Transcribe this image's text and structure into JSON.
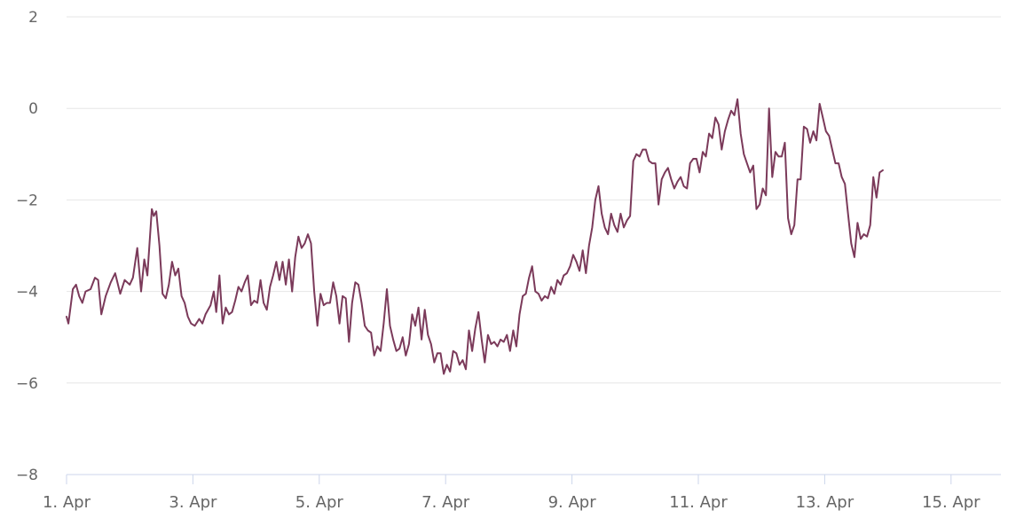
{
  "chart_data": {
    "type": "line",
    "title": "",
    "xlabel": "",
    "ylabel": "",
    "xlim": [
      0,
      14.75
    ],
    "ylim": [
      -8,
      2
    ],
    "y_ticks": [
      2,
      0,
      -2,
      -4,
      -6,
      -8
    ],
    "y_tick_labels": [
      "2",
      "0",
      "−2",
      "−4",
      "−6",
      "−8"
    ],
    "x_ticks": [
      0,
      2,
      4,
      6,
      8,
      10,
      12,
      14
    ],
    "x_tick_labels": [
      "1. Apr",
      "3. Apr",
      "5. Apr",
      "7. Apr",
      "9. Apr",
      "11. Apr",
      "13. Apr",
      "15. Apr"
    ],
    "x_unit": "days since 1. Apr",
    "grid": true,
    "legend": "none",
    "series": [
      {
        "color": "#7b3a5a",
        "points": [
          [
            0.0,
            -4.55
          ],
          [
            0.03,
            -4.7
          ],
          [
            0.1,
            -3.95
          ],
          [
            0.15,
            -3.85
          ],
          [
            0.2,
            -4.1
          ],
          [
            0.25,
            -4.25
          ],
          [
            0.3,
            -4.0
          ],
          [
            0.38,
            -3.95
          ],
          [
            0.45,
            -3.7
          ],
          [
            0.5,
            -3.75
          ],
          [
            0.55,
            -4.5
          ],
          [
            0.62,
            -4.1
          ],
          [
            0.7,
            -3.8
          ],
          [
            0.77,
            -3.6
          ],
          [
            0.85,
            -4.05
          ],
          [
            0.92,
            -3.75
          ],
          [
            1.0,
            -3.85
          ],
          [
            1.05,
            -3.7
          ],
          [
            1.12,
            -3.05
          ],
          [
            1.18,
            -4.0
          ],
          [
            1.23,
            -3.3
          ],
          [
            1.28,
            -3.65
          ],
          [
            1.35,
            -2.2
          ],
          [
            1.38,
            -2.35
          ],
          [
            1.42,
            -2.25
          ],
          [
            1.47,
            -3.0
          ],
          [
            1.52,
            -4.05
          ],
          [
            1.57,
            -4.15
          ],
          [
            1.62,
            -3.85
          ],
          [
            1.67,
            -3.35
          ],
          [
            1.72,
            -3.65
          ],
          [
            1.77,
            -3.5
          ],
          [
            1.82,
            -4.1
          ],
          [
            1.87,
            -4.25
          ],
          [
            1.92,
            -4.55
          ],
          [
            1.97,
            -4.7
          ],
          [
            2.03,
            -4.75
          ],
          [
            2.1,
            -4.6
          ],
          [
            2.15,
            -4.7
          ],
          [
            2.2,
            -4.5
          ],
          [
            2.28,
            -4.3
          ],
          [
            2.33,
            -4.0
          ],
          [
            2.37,
            -4.45
          ],
          [
            2.42,
            -3.65
          ],
          [
            2.47,
            -4.7
          ],
          [
            2.52,
            -4.35
          ],
          [
            2.57,
            -4.5
          ],
          [
            2.62,
            -4.45
          ],
          [
            2.67,
            -4.2
          ],
          [
            2.72,
            -3.9
          ],
          [
            2.77,
            -4.0
          ],
          [
            2.82,
            -3.8
          ],
          [
            2.87,
            -3.65
          ],
          [
            2.92,
            -4.3
          ],
          [
            2.97,
            -4.2
          ],
          [
            3.02,
            -4.25
          ],
          [
            3.07,
            -3.75
          ],
          [
            3.12,
            -4.25
          ],
          [
            3.17,
            -4.4
          ],
          [
            3.22,
            -3.9
          ],
          [
            3.27,
            -3.65
          ],
          [
            3.32,
            -3.35
          ],
          [
            3.37,
            -3.75
          ],
          [
            3.42,
            -3.35
          ],
          [
            3.47,
            -3.85
          ],
          [
            3.52,
            -3.3
          ],
          [
            3.57,
            -4.0
          ],
          [
            3.62,
            -3.25
          ],
          [
            3.67,
            -2.8
          ],
          [
            3.72,
            -3.05
          ],
          [
            3.77,
            -2.95
          ],
          [
            3.82,
            -2.75
          ],
          [
            3.87,
            -2.95
          ],
          [
            3.92,
            -4.0
          ],
          [
            3.97,
            -4.75
          ],
          [
            4.02,
            -4.05
          ],
          [
            4.07,
            -4.3
          ],
          [
            4.12,
            -4.25
          ],
          [
            4.17,
            -4.25
          ],
          [
            4.22,
            -3.8
          ],
          [
            4.27,
            -4.1
          ],
          [
            4.32,
            -4.7
          ],
          [
            4.37,
            -4.1
          ],
          [
            4.42,
            -4.15
          ],
          [
            4.47,
            -5.1
          ],
          [
            4.52,
            -4.25
          ],
          [
            4.57,
            -3.8
          ],
          [
            4.62,
            -3.85
          ],
          [
            4.67,
            -4.25
          ],
          [
            4.72,
            -4.75
          ],
          [
            4.77,
            -4.85
          ],
          [
            4.82,
            -4.9
          ],
          [
            4.87,
            -5.4
          ],
          [
            4.92,
            -5.2
          ],
          [
            4.97,
            -5.3
          ],
          [
            5.02,
            -4.7
          ],
          [
            5.07,
            -3.95
          ],
          [
            5.12,
            -4.75
          ],
          [
            5.17,
            -5.05
          ],
          [
            5.22,
            -5.3
          ],
          [
            5.27,
            -5.25
          ],
          [
            5.32,
            -5.0
          ],
          [
            5.37,
            -5.4
          ],
          [
            5.42,
            -5.15
          ],
          [
            5.47,
            -4.5
          ],
          [
            5.52,
            -4.75
          ],
          [
            5.57,
            -4.35
          ],
          [
            5.62,
            -5.05
          ],
          [
            5.67,
            -4.4
          ],
          [
            5.72,
            -4.95
          ],
          [
            5.77,
            -5.15
          ],
          [
            5.82,
            -5.55
          ],
          [
            5.87,
            -5.35
          ],
          [
            5.92,
            -5.35
          ],
          [
            5.97,
            -5.8
          ],
          [
            6.02,
            -5.6
          ],
          [
            6.07,
            -5.75
          ],
          [
            6.12,
            -5.3
          ],
          [
            6.17,
            -5.35
          ],
          [
            6.22,
            -5.6
          ],
          [
            6.27,
            -5.5
          ],
          [
            6.32,
            -5.7
          ],
          [
            6.37,
            -4.85
          ],
          [
            6.42,
            -5.3
          ],
          [
            6.47,
            -4.8
          ],
          [
            6.52,
            -4.45
          ],
          [
            6.57,
            -5.05
          ],
          [
            6.62,
            -5.55
          ],
          [
            6.67,
            -4.95
          ],
          [
            6.72,
            -5.15
          ],
          [
            6.77,
            -5.1
          ],
          [
            6.82,
            -5.2
          ],
          [
            6.87,
            -5.05
          ],
          [
            6.92,
            -5.1
          ],
          [
            6.97,
            -4.95
          ],
          [
            7.02,
            -5.3
          ],
          [
            7.07,
            -4.85
          ],
          [
            7.12,
            -5.2
          ],
          [
            7.17,
            -4.5
          ],
          [
            7.22,
            -4.1
          ],
          [
            7.27,
            -4.05
          ],
          [
            7.32,
            -3.7
          ],
          [
            7.37,
            -3.45
          ],
          [
            7.42,
            -4.0
          ],
          [
            7.47,
            -4.05
          ],
          [
            7.52,
            -4.2
          ],
          [
            7.57,
            -4.1
          ],
          [
            7.62,
            -4.15
          ],
          [
            7.67,
            -3.9
          ],
          [
            7.72,
            -4.05
          ],
          [
            7.77,
            -3.75
          ],
          [
            7.82,
            -3.85
          ],
          [
            7.87,
            -3.65
          ],
          [
            7.92,
            -3.6
          ],
          [
            7.97,
            -3.45
          ],
          [
            8.02,
            -3.2
          ],
          [
            8.07,
            -3.35
          ],
          [
            8.12,
            -3.55
          ],
          [
            8.17,
            -3.1
          ],
          [
            8.22,
            -3.6
          ],
          [
            8.27,
            -3.0
          ],
          [
            8.32,
            -2.6
          ],
          [
            8.37,
            -2.0
          ],
          [
            8.42,
            -1.7
          ],
          [
            8.47,
            -2.3
          ],
          [
            8.52,
            -2.6
          ],
          [
            8.57,
            -2.75
          ],
          [
            8.62,
            -2.3
          ],
          [
            8.67,
            -2.55
          ],
          [
            8.72,
            -2.7
          ],
          [
            8.77,
            -2.3
          ],
          [
            8.82,
            -2.6
          ],
          [
            8.87,
            -2.45
          ],
          [
            8.92,
            -2.35
          ],
          [
            8.97,
            -1.15
          ],
          [
            9.02,
            -1.0
          ],
          [
            9.07,
            -1.05
          ],
          [
            9.12,
            -0.9
          ],
          [
            9.17,
            -0.9
          ],
          [
            9.22,
            -1.15
          ],
          [
            9.27,
            -1.2
          ],
          [
            9.32,
            -1.2
          ],
          [
            9.37,
            -2.1
          ],
          [
            9.42,
            -1.55
          ],
          [
            9.47,
            -1.4
          ],
          [
            9.52,
            -1.3
          ],
          [
            9.57,
            -1.55
          ],
          [
            9.62,
            -1.75
          ],
          [
            9.67,
            -1.6
          ],
          [
            9.72,
            -1.5
          ],
          [
            9.77,
            -1.7
          ],
          [
            9.82,
            -1.75
          ],
          [
            9.87,
            -1.2
          ],
          [
            9.92,
            -1.1
          ],
          [
            9.97,
            -1.1
          ],
          [
            10.02,
            -1.4
          ],
          [
            10.07,
            -0.95
          ],
          [
            10.12,
            -1.05
          ],
          [
            10.17,
            -0.55
          ],
          [
            10.22,
            -0.65
          ],
          [
            10.27,
            -0.2
          ],
          [
            10.32,
            -0.35
          ],
          [
            10.37,
            -0.9
          ],
          [
            10.42,
            -0.5
          ],
          [
            10.47,
            -0.25
          ],
          [
            10.52,
            -0.05
          ],
          [
            10.57,
            -0.15
          ],
          [
            10.62,
            0.2
          ],
          [
            10.67,
            -0.55
          ],
          [
            10.72,
            -1.0
          ],
          [
            10.77,
            -1.2
          ],
          [
            10.82,
            -1.4
          ],
          [
            10.87,
            -1.25
          ],
          [
            10.92,
            -2.2
          ],
          [
            10.97,
            -2.1
          ],
          [
            11.02,
            -1.75
          ],
          [
            11.07,
            -1.9
          ],
          [
            11.12,
            0.0
          ],
          [
            11.17,
            -1.5
          ],
          [
            11.22,
            -0.95
          ],
          [
            11.27,
            -1.05
          ],
          [
            11.32,
            -1.05
          ],
          [
            11.37,
            -0.75
          ],
          [
            11.42,
            -2.4
          ],
          [
            11.47,
            -2.75
          ],
          [
            11.52,
            -2.55
          ],
          [
            11.57,
            -1.55
          ],
          [
            11.62,
            -1.55
          ],
          [
            11.67,
            -0.4
          ],
          [
            11.72,
            -0.45
          ],
          [
            11.77,
            -0.75
          ],
          [
            11.82,
            -0.5
          ],
          [
            11.87,
            -0.7
          ],
          [
            11.92,
            0.1
          ],
          [
            11.97,
            -0.2
          ],
          [
            12.02,
            -0.5
          ],
          [
            12.07,
            -0.6
          ],
          [
            12.12,
            -0.9
          ],
          [
            12.17,
            -1.2
          ],
          [
            12.22,
            -1.2
          ],
          [
            12.27,
            -1.5
          ],
          [
            12.32,
            -1.65
          ],
          [
            12.37,
            -2.3
          ],
          [
            12.42,
            -2.95
          ],
          [
            12.47,
            -3.25
          ],
          [
            12.52,
            -2.5
          ],
          [
            12.57,
            -2.85
          ],
          [
            12.62,
            -2.75
          ],
          [
            12.67,
            -2.8
          ],
          [
            12.72,
            -2.55
          ],
          [
            12.77,
            -1.5
          ],
          [
            12.82,
            -1.95
          ],
          [
            12.87,
            -1.4
          ],
          [
            12.92,
            -1.35
          ]
        ]
      }
    ]
  }
}
